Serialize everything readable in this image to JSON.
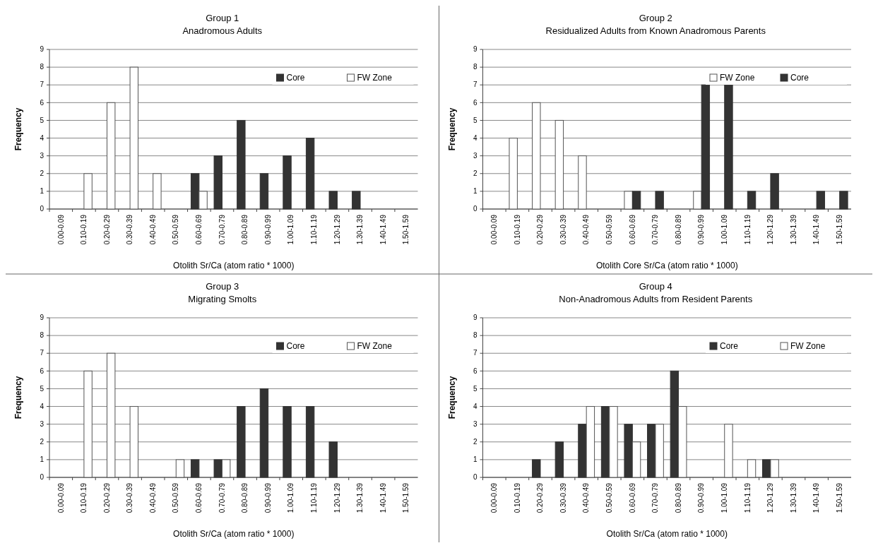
{
  "chart_data": [
    {
      "type": "bar",
      "title": "Group 1",
      "subtitle": "Anadromous Adults",
      "xlabel": "Otolith Sr/Ca (atom ratio * 1000)",
      "ylabel": "Frequency",
      "categories": [
        "0.00-0.09",
        "0.10-0.19",
        "0.20-0.29",
        "0.30-0.39",
        "0.40-0.49",
        "0.50-0.59",
        "0.60-0.69",
        "0.70-0.79",
        "0.80-0.89",
        "0.90-0.99",
        "1.00-1.09",
        "1.10-1.19",
        "1.20-1.29",
        "1.30-1.39",
        "1.40-1.49",
        "1.50-1.59"
      ],
      "series": [
        {
          "name": "Core",
          "color": "#333333",
          "values": [
            0,
            0,
            0,
            0,
            0,
            0,
            2,
            3,
            5,
            2,
            3,
            4,
            1,
            1,
            0,
            0
          ]
        },
        {
          "name": "FW Zone",
          "color": "#ffffff",
          "values": [
            0,
            2,
            6,
            8,
            2,
            0,
            1,
            0,
            0,
            0,
            0,
            0,
            0,
            0,
            0,
            0
          ]
        }
      ],
      "ylim": [
        0,
        9
      ],
      "yticks": [
        0,
        1,
        2,
        3,
        4,
        5,
        6,
        7,
        8,
        9
      ],
      "grid": "y",
      "legend": "top right"
    },
    {
      "type": "bar",
      "title": "Group 2",
      "subtitle": "Residualized Adults from Known Anadromous Parents",
      "xlabel": "Otolith Core Sr/Ca (atom ratio * 1000)",
      "ylabel": "Frequency",
      "categories": [
        "0.00-0.09",
        "0.10-0.19",
        "0.20-0.29",
        "0.30-0.39",
        "0.40-0.49",
        "0.50-0.59",
        "0.60-0.69",
        "0.70-0.79",
        "0.80-0.89",
        "0.90-0.99",
        "1.00-1.09",
        "1.10-1.19",
        "1.20-1.29",
        "1.30-1.39",
        "1.40-1.49",
        "1.50-1.59"
      ],
      "series": [
        {
          "name": "FW Zone",
          "color": "#ffffff",
          "values": [
            0,
            4,
            6,
            5,
            3,
            0,
            1,
            0,
            0,
            1,
            0,
            0,
            0,
            0,
            0,
            0
          ]
        },
        {
          "name": "Core",
          "color": "#333333",
          "values": [
            0,
            0,
            0,
            0,
            0,
            0,
            1,
            1,
            0,
            7,
            7,
            1,
            2,
            0,
            1,
            1
          ]
        }
      ],
      "ylim": [
        0,
        9
      ],
      "yticks": [
        0,
        1,
        2,
        3,
        4,
        5,
        6,
        7,
        8,
        9
      ],
      "grid": "y",
      "legend": "top right"
    },
    {
      "type": "bar",
      "title": "Group 3",
      "subtitle": "Migrating Smolts",
      "xlabel": "Otolith Sr/Ca (atom ratio * 1000)",
      "ylabel": "Frequency",
      "categories": [
        "0.00-0.09",
        "0.10-0.19",
        "0.20-0.29",
        "0.30-0.39",
        "0.40-0.49",
        "0.50-0.59",
        "0.60-0.69",
        "0.70-0.79",
        "0.80-0.89",
        "0.90-0.99",
        "1.00-1.09",
        "1.10-1.19",
        "1.20-1.29",
        "1.30-1.39",
        "1.40-1.49",
        "1.50-1.59"
      ],
      "series": [
        {
          "name": "Core",
          "color": "#333333",
          "values": [
            0,
            0,
            0,
            0,
            0,
            0,
            1,
            1,
            4,
            5,
            4,
            4,
            2,
            0,
            0,
            0
          ]
        },
        {
          "name": "FW Zone",
          "color": "#ffffff",
          "values": [
            0,
            6,
            7,
            4,
            0,
            1,
            0,
            1,
            0,
            0,
            0,
            0,
            0,
            0,
            0,
            0
          ]
        }
      ],
      "ylim": [
        0,
        9
      ],
      "yticks": [
        0,
        1,
        2,
        3,
        4,
        5,
        6,
        7,
        8,
        9
      ],
      "grid": "y",
      "legend": "top right"
    },
    {
      "type": "bar",
      "title": "Group 4",
      "subtitle": "Non-Anadromous Adults from Resident Parents",
      "xlabel": "Otolith Sr/Ca (atom ratio * 1000)",
      "ylabel": "Frequency",
      "categories": [
        "0.00-0.09",
        "0.10-0.19",
        "0.20-0.29",
        "0.30-0.39",
        "0.40-0.49",
        "0.50-0.59",
        "0.60-0.69",
        "0.70-0.79",
        "0.80-0.89",
        "0.90-0.99",
        "1.00-1.09",
        "1.10-1.19",
        "1.20-1.29",
        "1.30-1.39",
        "1.40-1.49",
        "1.50-1.59"
      ],
      "series": [
        {
          "name": "Core",
          "color": "#333333",
          "values": [
            0,
            0,
            1,
            2,
            3,
            4,
            3,
            3,
            6,
            0,
            0,
            0,
            1,
            0,
            0,
            0
          ]
        },
        {
          "name": "FW Zone",
          "color": "#ffffff",
          "values": [
            0,
            0,
            0,
            0,
            4,
            4,
            2,
            3,
            4,
            0,
            3,
            1,
            1,
            0,
            0,
            0
          ]
        }
      ],
      "ylim": [
        0,
        9
      ],
      "yticks": [
        0,
        1,
        2,
        3,
        4,
        5,
        6,
        7,
        8,
        9
      ],
      "grid": "y",
      "legend": "top right"
    }
  ]
}
